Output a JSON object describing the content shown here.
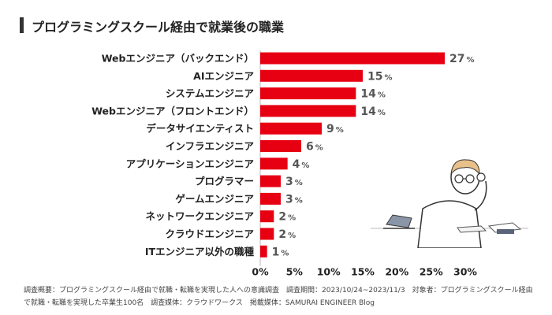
{
  "title": "プログラミングスクール経由で就業後の職業",
  "chart_data": {
    "type": "bar",
    "orientation": "horizontal",
    "title": "プログラミングスクール経由で就業後の職業",
    "categories": [
      "Webエンジニア（バックエンド）",
      "AIエンジニア",
      "システムエンジニア",
      "Webエンジニア（フロントエンド）",
      "データサイエンティスト",
      "インフラエンジニア",
      "アプリケーションエンジニア",
      "プログラマー",
      "ゲームエンジニア",
      "ネットワークエンジニア",
      "クラウドエンジニア",
      "ITエンジニア以外の職種"
    ],
    "values": [
      27,
      15,
      14,
      14,
      9,
      6,
      4,
      3,
      3,
      2,
      2,
      1
    ],
    "unit": "%",
    "xlim": [
      0,
      30
    ],
    "ticks": [
      "0%",
      "5%",
      "10%",
      "15%",
      "20%",
      "25%",
      "30%"
    ],
    "bar_color": "#e60012",
    "grid": false
  },
  "footnote": {
    "line1": "調査概要：プログラミングスクール経由で就職・転職を実現した人への意識調査　調査期間：2023/10/24~2023/11/3　対象者：プログラミングスクール経由",
    "line2": "で就職・転職を実現した卒業生100名　調査媒体：クラウドワークス　掲載媒体：SAMURAI ENGINEER Blog"
  }
}
